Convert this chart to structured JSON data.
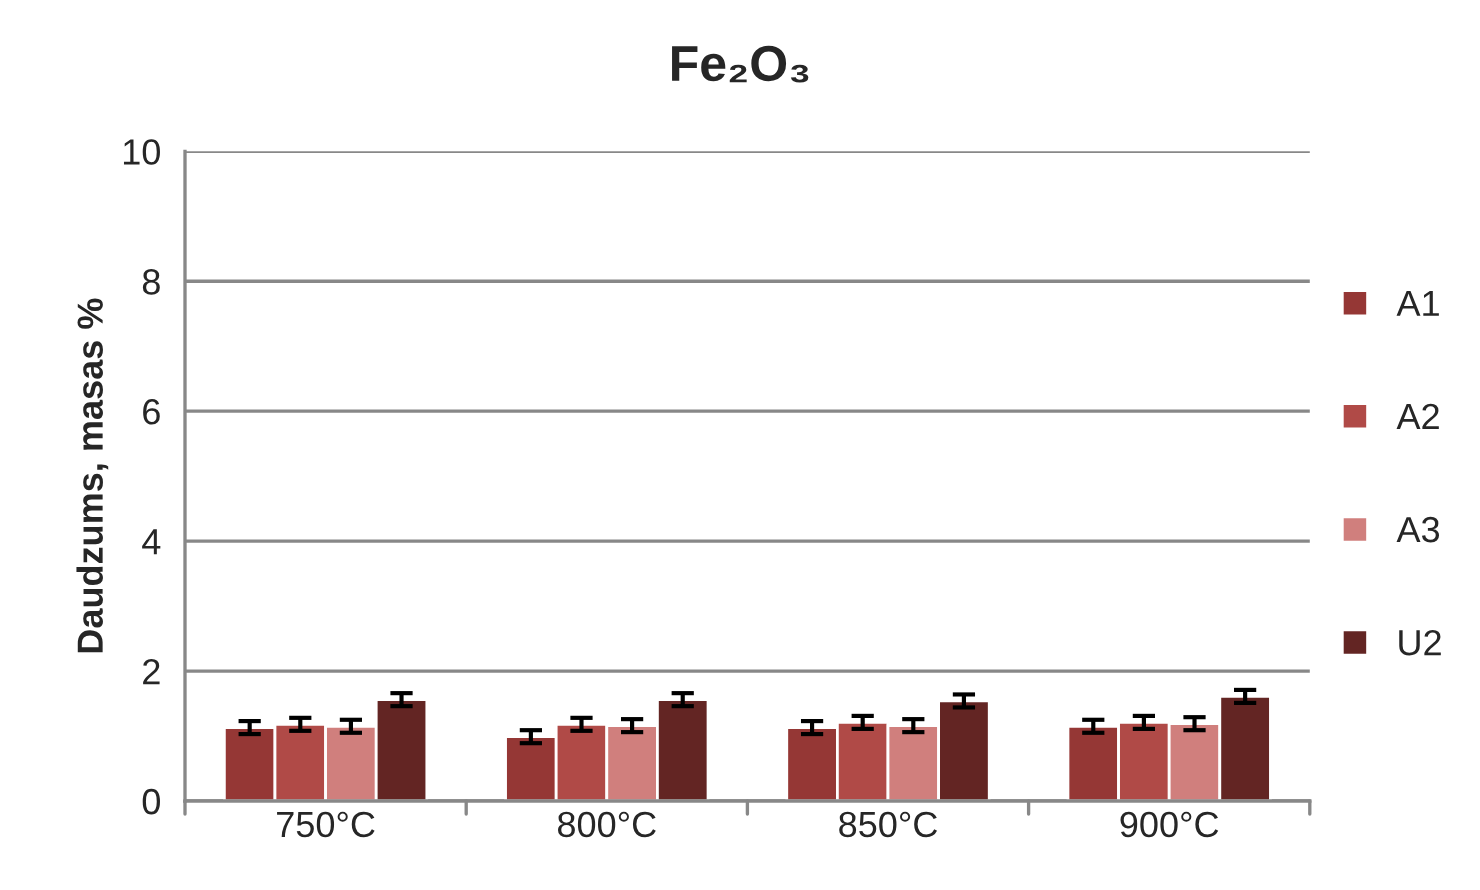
{
  "chart_data": {
    "type": "bar",
    "title": "Fe₂O₃",
    "ylabel": "Daudzums, masas %",
    "categories": [
      "750°C",
      "800°C",
      "850°C",
      "900°C"
    ],
    "series": [
      {
        "name": "A1",
        "color": "#953735",
        "values": [
          1.13,
          0.99,
          1.13,
          1.15
        ],
        "errors": [
          0.1,
          0.1,
          0.1,
          0.1
        ]
      },
      {
        "name": "A2",
        "color": "#b04a47",
        "values": [
          1.18,
          1.18,
          1.21,
          1.21
        ],
        "errors": [
          0.1,
          0.1,
          0.1,
          0.1
        ]
      },
      {
        "name": "A3",
        "color": "#d07f7d",
        "values": [
          1.15,
          1.16,
          1.16,
          1.19
        ],
        "errors": [
          0.1,
          0.1,
          0.1,
          0.1
        ]
      },
      {
        "name": "U2",
        "color": "#632523",
        "values": [
          1.56,
          1.56,
          1.54,
          1.61
        ],
        "errors": [
          0.1,
          0.1,
          0.1,
          0.1
        ]
      }
    ],
    "ylim": [
      0,
      10
    ],
    "yticks": [
      0,
      2,
      4,
      6,
      8,
      10
    ],
    "grid": "y",
    "legend": "right"
  }
}
